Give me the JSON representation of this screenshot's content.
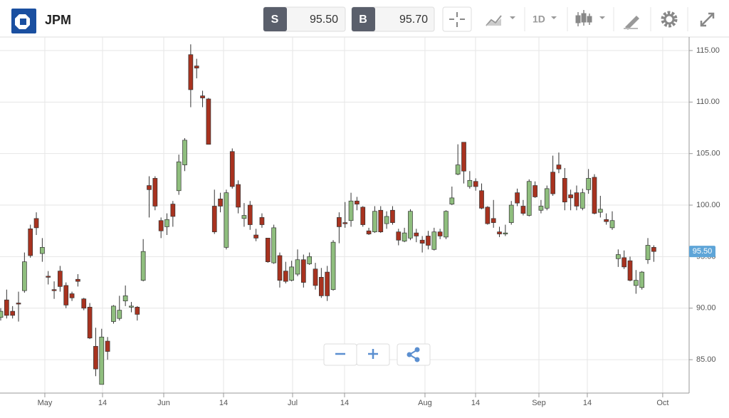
{
  "toolbar": {
    "symbol": "JPM",
    "sell_label": "S",
    "sell_price": "95.50",
    "buy_label": "B",
    "buy_price": "95.70",
    "interval": "1D"
  },
  "chart_data": {
    "type": "candlestick",
    "up_color": "#8fbe7e",
    "down_color": "#a8321f",
    "grid": true,
    "open": [
      89.1,
      90.8,
      89.7,
      90.5,
      91.7,
      97.7,
      98.7,
      95.3,
      93.1,
      91.8,
      93.6,
      92.2,
      91.4,
      92.8,
      90.9,
      90.1,
      86.3,
      82.6,
      86.8,
      88.7,
      89.0,
      90.7,
      90.1,
      90.1,
      92.7,
      101.9,
      102.6,
      98.5,
      97.9,
      100.1,
      101.4,
      103.9,
      114.6,
      113.5,
      110.6,
      110.3,
      99.9,
      100.6,
      95.9,
      105.2,
      102.0,
      98.7,
      100.0,
      97.1,
      98.8,
      96.8,
      94.4,
      95.1,
      93.6,
      92.7,
      93.3,
      94.7,
      94.3,
      93.8,
      93.0,
      93.5,
      91.8,
      98.8,
      98.3,
      98.5,
      100.4,
      99.8,
      97.5,
      97.4,
      99.5,
      98.2,
      99.5,
      97.4,
      96.5,
      96.8,
      97.3,
      96.6,
      97.0,
      95.7,
      97.4,
      96.9,
      100.1,
      103.0,
      106.1,
      101.8,
      102.3,
      101.4,
      99.8,
      98.7,
      97.4,
      97.2,
      98.3,
      101.2,
      99.9,
      99.0,
      101.9,
      99.5,
      99.7,
      103.2,
      103.9,
      102.6,
      101.0,
      101.2,
      99.7,
      101.5,
      102.7,
      99.3,
      98.6,
      97.8,
      94.8,
      94.9,
      94.6,
      92.2,
      92.0,
      94.7,
      95.9
    ],
    "high": [
      90,
      91.8,
      90.2,
      91.6,
      95.4,
      98.1,
      99.3,
      96.8,
      93.6,
      92.6,
      94.1,
      92.5,
      91.6,
      93.3,
      91.0,
      90.5,
      88.1,
      88.0,
      87.2,
      90.3,
      91.2,
      92.2,
      90.6,
      90.2,
      96.7,
      102.8,
      102.8,
      98.8,
      99.2,
      100.4,
      104.9,
      106.5,
      115.6,
      114.2,
      111.1,
      110.4,
      101.5,
      101.2,
      101.5,
      105.5,
      102.4,
      100.2,
      100.4,
      97.7,
      99.2,
      96.8,
      98.1,
      95.4,
      94.5,
      94.6,
      95.7,
      95.2,
      95.4,
      94.4,
      93.9,
      94.1,
      96.6,
      99.3,
      100.3,
      101.2,
      100.8,
      99.9,
      97.8,
      99.9,
      99.9,
      99.4,
      99.9,
      97.7,
      97.8,
      99.6,
      97.7,
      97.0,
      97.5,
      97.8,
      97.7,
      99.5,
      101.8,
      105.9,
      106.1,
      103.3,
      102.6,
      102.1,
      99.9,
      100.5,
      97.9,
      98.1,
      100.4,
      101.6,
      100.5,
      102.5,
      102.3,
      100.5,
      101.9,
      104.8,
      105.1,
      103.6,
      101.5,
      101.9,
      101.6,
      103.5,
      103.0,
      100.9,
      99.2,
      99.4,
      95.7,
      95.6,
      95.0,
      93.7,
      93.6,
      96.8,
      96.1
    ],
    "low": [
      88.8,
      89,
      89.0,
      88.7,
      91.5,
      94.9,
      97.1,
      94.5,
      92.3,
      90.9,
      91.6,
      90.0,
      90.7,
      92.1,
      89.8,
      87.0,
      83.4,
      82.6,
      85.0,
      88.5,
      88.8,
      90.2,
      89.6,
      88.8,
      92.6,
      98.8,
      99.5,
      96.8,
      97.1,
      97.9,
      101.0,
      103.3,
      109.5,
      112.3,
      109.5,
      105.9,
      97.2,
      99.3,
      95.7,
      101.6,
      99.2,
      97.9,
      97.6,
      96.5,
      97.8,
      94.4,
      94.3,
      92.0,
      92.4,
      92.6,
      93.1,
      92.0,
      94.2,
      91.8,
      91.0,
      90.7,
      91.7,
      96.3,
      97.8,
      97.9,
      99.5,
      97.9,
      97.1,
      97.3,
      97.3,
      97.7,
      98.1,
      96.1,
      96.4,
      96.6,
      96.4,
      95.4,
      95.7,
      95.6,
      96.7,
      96.7,
      100.0,
      102.9,
      102.1,
      101.6,
      101.4,
      99.6,
      98.1,
      97.8,
      96.9,
      97.0,
      98.1,
      99.9,
      99.0,
      98.9,
      100.7,
      99.2,
      99.5,
      100.9,
      103.1,
      99.5,
      99.5,
      99.5,
      99.5,
      101.1,
      99.1,
      98.8,
      98.1,
      97.6,
      94.0,
      93.8,
      92.6,
      91.4,
      91.8,
      94.3,
      94.5
    ],
    "close": [
      89.7,
      89.3,
      89.3,
      90.4,
      94.5,
      95.1,
      97.8,
      95.9,
      93.0,
      91.7,
      92.1,
      90.3,
      91.0,
      92.6,
      90.0,
      87.1,
      84.1,
      87.2,
      85.8,
      90.2,
      89.8,
      91.2,
      90.2,
      89.4,
      95.5,
      101.5,
      99.9,
      97.5,
      98.6,
      98.9,
      104.2,
      106.3,
      111.2,
      113.3,
      110.4,
      105.9,
      97.4,
      99.9,
      101.2,
      101.8,
      99.8,
      99.0,
      98.1,
      96.8,
      98.1,
      94.5,
      97.8,
      92.7,
      92.6,
      94.0,
      94.7,
      92.5,
      95.0,
      92.2,
      91.2,
      91.2,
      96.4,
      97.9,
      98.2,
      100.4,
      100.1,
      98.1,
      97.2,
      99.4,
      97.4,
      98.9,
      98.3,
      96.6,
      97.3,
      99.4,
      97.0,
      96.3,
      96.1,
      97.4,
      97.0,
      99.4,
      100.7,
      103.9,
      103.3,
      102.4,
      101.8,
      99.7,
      98.2,
      98.3,
      97.2,
      97.3,
      100.0,
      100.2,
      99.2,
      102.3,
      100.8,
      99.9,
      101.6,
      101.1,
      103.5,
      100.3,
      100.7,
      99.9,
      101.2,
      102.6,
      99.2,
      99.6,
      98.4,
      98.5,
      95.2,
      94.0,
      92.7,
      92.7,
      93.5,
      96.1,
      95.5
    ],
    "xlim": [
      -0.12,
      115.95
    ],
    "xticks": [
      {
        "value": 7.43,
        "label": "May"
      },
      {
        "value": 17.15,
        "label": "14"
      },
      {
        "value": 27.46,
        "label": "Jun"
      },
      {
        "value": 37.53,
        "label": "14"
      },
      {
        "value": 49.16,
        "label": "Jul"
      },
      {
        "value": 57.91,
        "label": "14"
      },
      {
        "value": 71.46,
        "label": "Aug"
      },
      {
        "value": 79.98,
        "label": "14"
      },
      {
        "value": 90.65,
        "label": "Sep"
      },
      {
        "value": 98.8,
        "label": "14"
      },
      {
        "value": 111.5,
        "label": "Oct"
      }
    ],
    "ylim": [
      81.76,
      116.31
    ],
    "yticks": [
      {
        "value": 85,
        "label": "85.00"
      },
      {
        "value": 90,
        "label": "90.00"
      },
      {
        "value": 95,
        "label": "95.00"
      },
      {
        "value": 100,
        "label": "100.00"
      },
      {
        "value": 105,
        "label": "105.00"
      },
      {
        "value": 110,
        "label": "110.00"
      },
      {
        "value": 115,
        "label": "115.00"
      }
    ],
    "price_marker": {
      "value": 95.5,
      "label": "95.50",
      "color": "#5ea5d8"
    }
  }
}
